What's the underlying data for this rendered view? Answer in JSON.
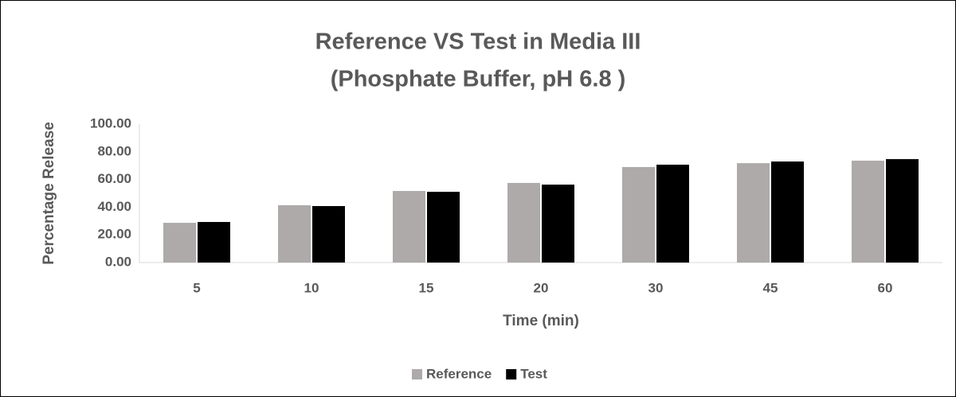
{
  "chart_data": {
    "type": "bar",
    "title": [
      "Reference VS Test in Media III",
      "(Phosphate Buffer, pH 6.8 )"
    ],
    "x_label": "Time (min)",
    "y_label": "Percentage Release",
    "categories": [
      "5",
      "10",
      "15",
      "20",
      "30",
      "45",
      "60"
    ],
    "series": [
      {
        "name": "Reference",
        "color": "#aeaaaa",
        "values": [
          28.7,
          41.4,
          51.7,
          57.5,
          69.0,
          71.8,
          73.6
        ]
      },
      {
        "name": "Test",
        "color": "#000000",
        "values": [
          29.3,
          40.8,
          51.1,
          56.3,
          70.7,
          73.0,
          74.7
        ]
      }
    ],
    "ylim": [
      0,
      100
    ],
    "yticks": [
      {
        "value": 0,
        "label": "0.00"
      },
      {
        "value": 20,
        "label": "20.00"
      },
      {
        "value": 40,
        "label": "40.00"
      },
      {
        "value": 60,
        "label": "60.00"
      },
      {
        "value": 80,
        "label": "80.00"
      },
      {
        "value": 100,
        "label": "100.00"
      }
    ],
    "grid": false,
    "legend": "bottom"
  }
}
